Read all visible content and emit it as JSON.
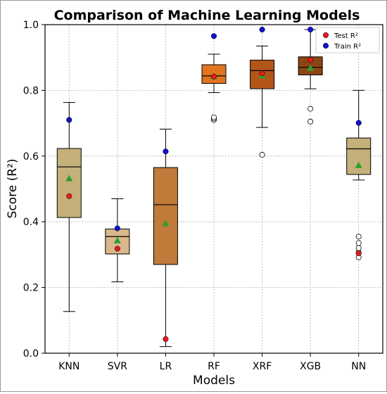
{
  "chart_data": {
    "type": "box",
    "title": "Comparison of Machine Learning Models",
    "xlabel": "Models",
    "ylabel": "Score (R²)",
    "ylim": [
      0.0,
      1.0
    ],
    "yticks": [
      0.0,
      0.2,
      0.4,
      0.6,
      0.8,
      1.0
    ],
    "ytick_labels": [
      "0.0",
      "0.2",
      "0.4",
      "0.6",
      "0.8",
      "1.0"
    ],
    "grid": true,
    "legend_position": "top-right",
    "legend": [
      {
        "label": "Test R²",
        "color": "#e41a1c"
      },
      {
        "label": "Train R²",
        "color": "#1010d0"
      }
    ],
    "mean_marker_color": "#2ca02c",
    "categories": [
      "KNN",
      "SVR",
      "LR",
      "RF",
      "XRF",
      "XGB",
      "NN"
    ],
    "boxes": [
      {
        "name": "KNN",
        "color": "#c4b07a",
        "whislo": 0.127,
        "q1": 0.413,
        "med": 0.567,
        "q3": 0.623,
        "whishi": 0.763,
        "mean": 0.532,
        "fliers": [],
        "test": 0.478,
        "train": 0.71
      },
      {
        "name": "SVR",
        "color": "#d8b88c",
        "whislo": 0.217,
        "q1": 0.302,
        "med": 0.355,
        "q3": 0.378,
        "whishi": 0.47,
        "mean": 0.343,
        "fliers": [],
        "test": 0.318,
        "train": 0.38
      },
      {
        "name": "LR",
        "color": "#c07a3a",
        "whislo": 0.02,
        "q1": 0.27,
        "med": 0.452,
        "q3": 0.565,
        "whishi": 0.682,
        "mean": 0.395,
        "fliers": [],
        "test": 0.043,
        "train": 0.614
      },
      {
        "name": "RF",
        "color": "#e07420",
        "whislo": 0.793,
        "q1": 0.821,
        "med": 0.844,
        "q3": 0.878,
        "whishi": 0.91,
        "mean": 0.842,
        "fliers": [
          0.71,
          0.714,
          0.718
        ],
        "test": 0.842,
        "train": 0.965
      },
      {
        "name": "XRF",
        "color": "#b45518",
        "whislo": 0.687,
        "q1": 0.805,
        "med": 0.86,
        "q3": 0.892,
        "whishi": 0.935,
        "mean": 0.845,
        "fliers": [
          0.604
        ],
        "test": 0.852,
        "train": 0.985
      },
      {
        "name": "XGB",
        "color": "#8b4513",
        "whislo": 0.805,
        "q1": 0.847,
        "med": 0.87,
        "q3": 0.902,
        "whishi": 0.985,
        "mean": 0.868,
        "fliers": [
          0.705,
          0.744
        ],
        "test": 0.893,
        "train": 0.985
      },
      {
        "name": "NN",
        "color": "#c4b07a",
        "whislo": 0.527,
        "q1": 0.544,
        "med": 0.622,
        "q3": 0.655,
        "whishi": 0.8,
        "mean": 0.572,
        "fliers": [
          0.292,
          0.308,
          0.32,
          0.335,
          0.355
        ],
        "test": 0.304,
        "train": 0.701
      }
    ]
  }
}
